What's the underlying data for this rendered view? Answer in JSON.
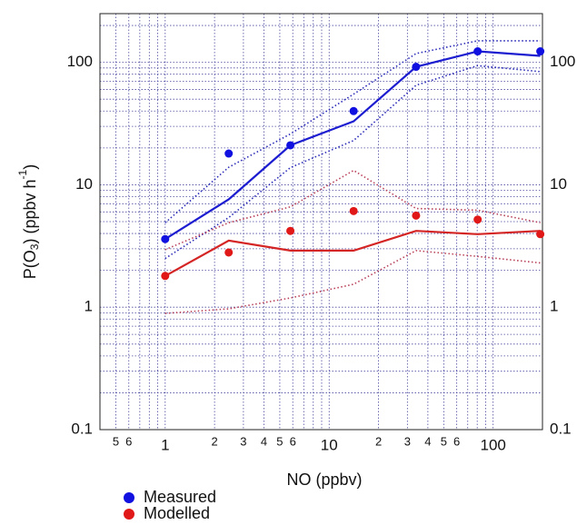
{
  "chart_data": {
    "type": "line",
    "xlabel": "NO (ppbv)",
    "ylabel": {
      "parts": [
        "P(O",
        "3",
        ") (ppbv h",
        "-1",
        ")"
      ]
    },
    "log_x": true,
    "log_y": true,
    "grid": true,
    "right_axis_labels": true,
    "legend": "bottom",
    "xlim": [
      0.4,
      200
    ],
    "ylim": [
      0.1,
      250
    ],
    "xticks": [
      {
        "value": 0.5,
        "label": "5"
      },
      {
        "value": 0.6,
        "label": "6"
      },
      1,
      2,
      3,
      4,
      5,
      6,
      10,
      {
        "value": 20,
        "label": "2"
      },
      {
        "value": 30,
        "label": "3"
      },
      {
        "value": 40,
        "label": "4"
      },
      {
        "value": 50,
        "label": "5"
      },
      {
        "value": 60,
        "label": "6"
      },
      100
    ],
    "x_minor_ticks": [
      0.4,
      0.7,
      0.8,
      0.9,
      7,
      8,
      9,
      70,
      80,
      90,
      200
    ],
    "yticks": [
      0.1,
      1,
      10,
      100
    ],
    "y_minor_ticks": [
      0.2,
      0.3,
      0.4,
      0.5,
      0.6,
      0.7,
      0.8,
      0.9,
      2,
      3,
      4,
      5,
      6,
      7,
      8,
      9,
      20,
      30,
      40,
      50,
      60,
      70,
      80,
      90,
      200
    ],
    "x": [
      1.0,
      2.44,
      5.8,
      14.1,
      33.9,
      80.5,
      194
    ],
    "series": [
      {
        "style": "dotted",
        "color": "#2a2ab8",
        "values": [
          4.9,
          13.9,
          26,
          55,
          118,
          150,
          150
        ]
      },
      {
        "style": "solid",
        "color": "#1c1cd0",
        "values": [
          3.6,
          7.6,
          21,
          33,
          92,
          123,
          113
        ]
      },
      {
        "style": "dotted",
        "color": "#2a2ab8",
        "values": [
          2.5,
          5.4,
          13.8,
          23,
          65,
          94,
          84
        ]
      },
      {
        "style": "dotted",
        "color": "#b84058",
        "values": [
          2.95,
          4.9,
          6.6,
          13.1,
          6.4,
          6.2,
          4.9
        ]
      },
      {
        "style": "solid",
        "color": "#d42424",
        "values": [
          1.8,
          3.5,
          2.9,
          2.9,
          4.2,
          3.95,
          4.2
        ]
      },
      {
        "style": "dotted",
        "color": "#b84058",
        "values": [
          0.89,
          0.97,
          1.19,
          1.54,
          2.9,
          2.6,
          2.3
        ]
      },
      {
        "name": "Measured",
        "style": "markers",
        "color": "#1010e0",
        "values": [
          3.6,
          18,
          21,
          40,
          92,
          123,
          123
        ]
      },
      {
        "name": "Modelled",
        "style": "markers",
        "color": "#e01818",
        "values": [
          1.8,
          2.8,
          4.2,
          6.1,
          5.6,
          5.2,
          3.95
        ]
      }
    ]
  }
}
